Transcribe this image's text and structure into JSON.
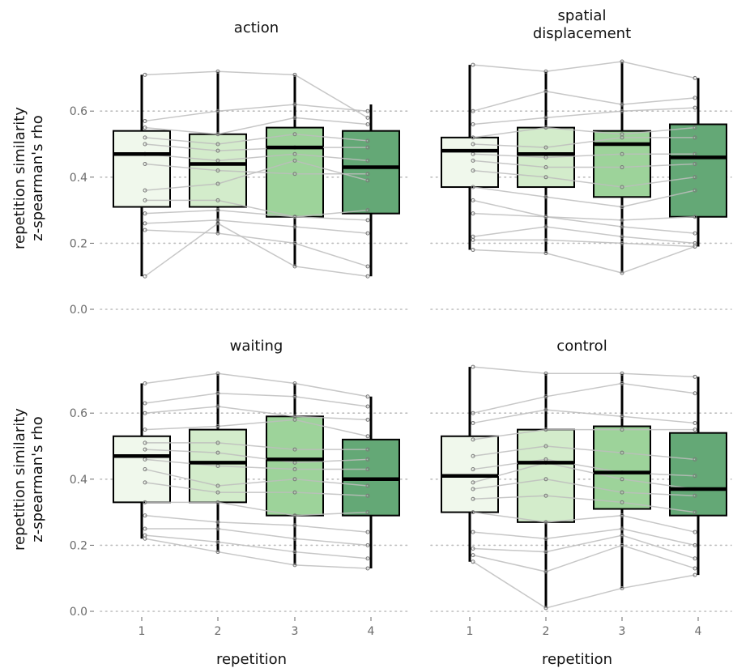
{
  "chart_data": {
    "type": "boxplot",
    "layout": "2x2 facets",
    "y_axis_title": "repetition similarity\nz-spearman's rho",
    "x_axis_title": "repetition",
    "x_categories": [
      "1",
      "2",
      "3",
      "4"
    ],
    "y_ticks": [
      "0.0",
      "0.2",
      "0.4",
      "0.6"
    ],
    "ylim": [
      0.0,
      0.75
    ],
    "grid": "horizontal dotted at y ticks",
    "box_fill_colors": [
      "#f0f8ec",
      "#d3eccb",
      "#9dd39a",
      "#64a876"
    ],
    "point_color": "#7a7a7a",
    "line_color": "#bdbdbd",
    "panels": [
      {
        "title": "action",
        "boxes": [
          {
            "rep": 1,
            "min": 0.1,
            "q1": 0.31,
            "median": 0.47,
            "q3": 0.54,
            "max": 0.71
          },
          {
            "rep": 2,
            "min": 0.23,
            "q1": 0.31,
            "median": 0.44,
            "q3": 0.53,
            "max": 0.72
          },
          {
            "rep": 3,
            "min": 0.13,
            "q1": 0.28,
            "median": 0.49,
            "q3": 0.55,
            "max": 0.71
          },
          {
            "rep": 4,
            "min": 0.1,
            "q1": 0.29,
            "median": 0.43,
            "q3": 0.54,
            "max": 0.62
          }
        ],
        "subjects": [
          [
            0.71,
            0.72,
            0.71,
            0.58
          ],
          [
            0.57,
            0.6,
            0.62,
            0.6
          ],
          [
            0.55,
            0.53,
            0.58,
            0.56
          ],
          [
            0.52,
            0.5,
            0.53,
            0.51
          ],
          [
            0.5,
            0.48,
            0.49,
            0.49
          ],
          [
            0.47,
            0.45,
            0.47,
            0.45
          ],
          [
            0.44,
            0.42,
            0.41,
            0.41
          ],
          [
            0.36,
            0.38,
            0.45,
            0.39
          ],
          [
            0.33,
            0.33,
            0.28,
            0.3
          ],
          [
            0.29,
            0.3,
            0.28,
            0.27
          ],
          [
            0.26,
            0.27,
            0.25,
            0.23
          ],
          [
            0.24,
            0.23,
            0.2,
            0.13
          ],
          [
            0.1,
            0.26,
            0.13,
            0.1
          ]
        ]
      },
      {
        "title": "spatial\ndisplacement",
        "boxes": [
          {
            "rep": 1,
            "min": 0.18,
            "q1": 0.37,
            "median": 0.48,
            "q3": 0.52,
            "max": 0.74
          },
          {
            "rep": 2,
            "min": 0.17,
            "q1": 0.37,
            "median": 0.47,
            "q3": 0.55,
            "max": 0.72
          },
          {
            "rep": 3,
            "min": 0.11,
            "q1": 0.34,
            "median": 0.5,
            "q3": 0.54,
            "max": 0.75
          },
          {
            "rep": 4,
            "min": 0.19,
            "q1": 0.28,
            "median": 0.46,
            "q3": 0.56,
            "max": 0.7
          }
        ],
        "subjects": [
          [
            0.74,
            0.72,
            0.75,
            0.7
          ],
          [
            0.6,
            0.66,
            0.62,
            0.64
          ],
          [
            0.56,
            0.58,
            0.6,
            0.61
          ],
          [
            0.52,
            0.55,
            0.53,
            0.55
          ],
          [
            0.5,
            0.49,
            0.52,
            0.52
          ],
          [
            0.47,
            0.46,
            0.47,
            0.47
          ],
          [
            0.45,
            0.43,
            0.43,
            0.44
          ],
          [
            0.42,
            0.4,
            0.37,
            0.4
          ],
          [
            0.37,
            0.34,
            0.31,
            0.36
          ],
          [
            0.33,
            0.28,
            0.27,
            0.28
          ],
          [
            0.29,
            0.28,
            0.25,
            0.23
          ],
          [
            0.22,
            0.25,
            0.22,
            0.2
          ],
          [
            0.21,
            0.21,
            0.2,
            0.19
          ],
          [
            0.18,
            0.17,
            0.11,
            0.19
          ]
        ]
      },
      {
        "title": "waiting",
        "boxes": [
          {
            "rep": 1,
            "min": 0.22,
            "q1": 0.33,
            "median": 0.47,
            "q3": 0.53,
            "max": 0.69
          },
          {
            "rep": 2,
            "min": 0.18,
            "q1": 0.33,
            "median": 0.45,
            "q3": 0.55,
            "max": 0.72
          },
          {
            "rep": 3,
            "min": 0.14,
            "q1": 0.29,
            "median": 0.46,
            "q3": 0.59,
            "max": 0.69
          },
          {
            "rep": 4,
            "min": 0.13,
            "q1": 0.29,
            "median": 0.4,
            "q3": 0.52,
            "max": 0.65
          }
        ],
        "subjects": [
          [
            0.69,
            0.72,
            0.69,
            0.65
          ],
          [
            0.63,
            0.66,
            0.65,
            0.62
          ],
          [
            0.6,
            0.62,
            0.59,
            0.58
          ],
          [
            0.55,
            0.56,
            0.58,
            0.53
          ],
          [
            0.51,
            0.51,
            0.49,
            0.49
          ],
          [
            0.49,
            0.48,
            0.45,
            0.46
          ],
          [
            0.46,
            0.44,
            0.43,
            0.43
          ],
          [
            0.43,
            0.38,
            0.4,
            0.38
          ],
          [
            0.39,
            0.36,
            0.36,
            0.35
          ],
          [
            0.33,
            0.33,
            0.29,
            0.3
          ],
          [
            0.29,
            0.27,
            0.26,
            0.24
          ],
          [
            0.25,
            0.25,
            0.22,
            0.2
          ],
          [
            0.23,
            0.21,
            0.18,
            0.16
          ],
          [
            0.22,
            0.18,
            0.14,
            0.13
          ]
        ]
      },
      {
        "title": "control",
        "boxes": [
          {
            "rep": 1,
            "min": 0.15,
            "q1": 0.3,
            "median": 0.41,
            "q3": 0.53,
            "max": 0.74
          },
          {
            "rep": 2,
            "min": 0.01,
            "q1": 0.27,
            "median": 0.45,
            "q3": 0.55,
            "max": 0.72
          },
          {
            "rep": 3,
            "min": 0.07,
            "q1": 0.31,
            "median": 0.42,
            "q3": 0.56,
            "max": 0.72
          },
          {
            "rep": 4,
            "min": 0.11,
            "q1": 0.29,
            "median": 0.37,
            "q3": 0.54,
            "max": 0.71
          }
        ],
        "subjects": [
          [
            0.74,
            0.72,
            0.72,
            0.71
          ],
          [
            0.6,
            0.65,
            0.69,
            0.66
          ],
          [
            0.57,
            0.61,
            0.59,
            0.57
          ],
          [
            0.52,
            0.55,
            0.55,
            0.55
          ],
          [
            0.47,
            0.5,
            0.48,
            0.46
          ],
          [
            0.43,
            0.46,
            0.42,
            0.41
          ],
          [
            0.39,
            0.45,
            0.4,
            0.37
          ],
          [
            0.37,
            0.4,
            0.36,
            0.35
          ],
          [
            0.34,
            0.35,
            0.33,
            0.3
          ],
          [
            0.3,
            0.27,
            0.29,
            0.24
          ],
          [
            0.24,
            0.22,
            0.25,
            0.2
          ],
          [
            0.19,
            0.18,
            0.23,
            0.16
          ],
          [
            0.17,
            0.12,
            0.2,
            0.13
          ],
          [
            0.15,
            0.01,
            0.07,
            0.11
          ]
        ]
      }
    ]
  }
}
